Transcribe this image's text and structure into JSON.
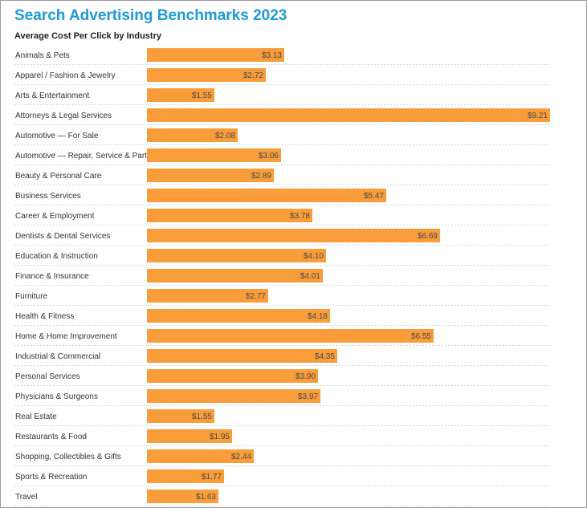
{
  "chart_data": {
    "type": "bar",
    "orientation": "horizontal",
    "title": "Search Advertising Benchmarks 2023",
    "subtitle": "Average Cost Per Click by Industry",
    "categories": [
      "Animals & Pets",
      "Apparel / Fashion & Jewelry",
      "Arts & Entertainment",
      "Attorneys & Legal Services",
      "Automotive — For Sale",
      "Automotive — Repair, Service & Parts",
      "Beauty & Personal Care",
      "Business Services",
      "Career & Employment",
      "Dentists & Dental Services",
      "Education & Instruction",
      "Finance & Insurance",
      "Furniture",
      "Health & Fitness",
      "Home & Home Improvement",
      "Industrial & Commercial",
      "Personal Services",
      "Physicians & Surgeons",
      "Real Estate",
      "Restaurants & Food",
      "Shopping, Collectibles & Gifts",
      "Sports & Recreation",
      "Travel"
    ],
    "values": [
      3.13,
      2.72,
      1.55,
      9.21,
      2.08,
      3.06,
      2.89,
      5.47,
      3.78,
      6.69,
      4.1,
      4.01,
      2.77,
      4.18,
      6.55,
      4.35,
      3.9,
      3.97,
      1.55,
      1.95,
      2.44,
      1.77,
      1.63
    ],
    "value_labels": [
      "$3.13",
      "$2.72",
      "$1.55",
      "$9.21",
      "$2.08",
      "$3.06",
      "$2.89",
      "$5.47",
      "$3.78",
      "$6.69",
      "$4.10",
      "$4.01",
      "$2.77",
      "$4.18",
      "$6.55",
      "$4.35",
      "$3.90",
      "$3.97",
      "$1.55",
      "$1.95",
      "$2.44",
      "$1.77",
      "$1.63"
    ],
    "xlim": [
      0,
      9.21
    ],
    "grid": false,
    "legend": "none",
    "colors": {
      "bar": "#f99d3b",
      "title": "#1b9bd7",
      "separator": "#d6d6d6"
    }
  }
}
